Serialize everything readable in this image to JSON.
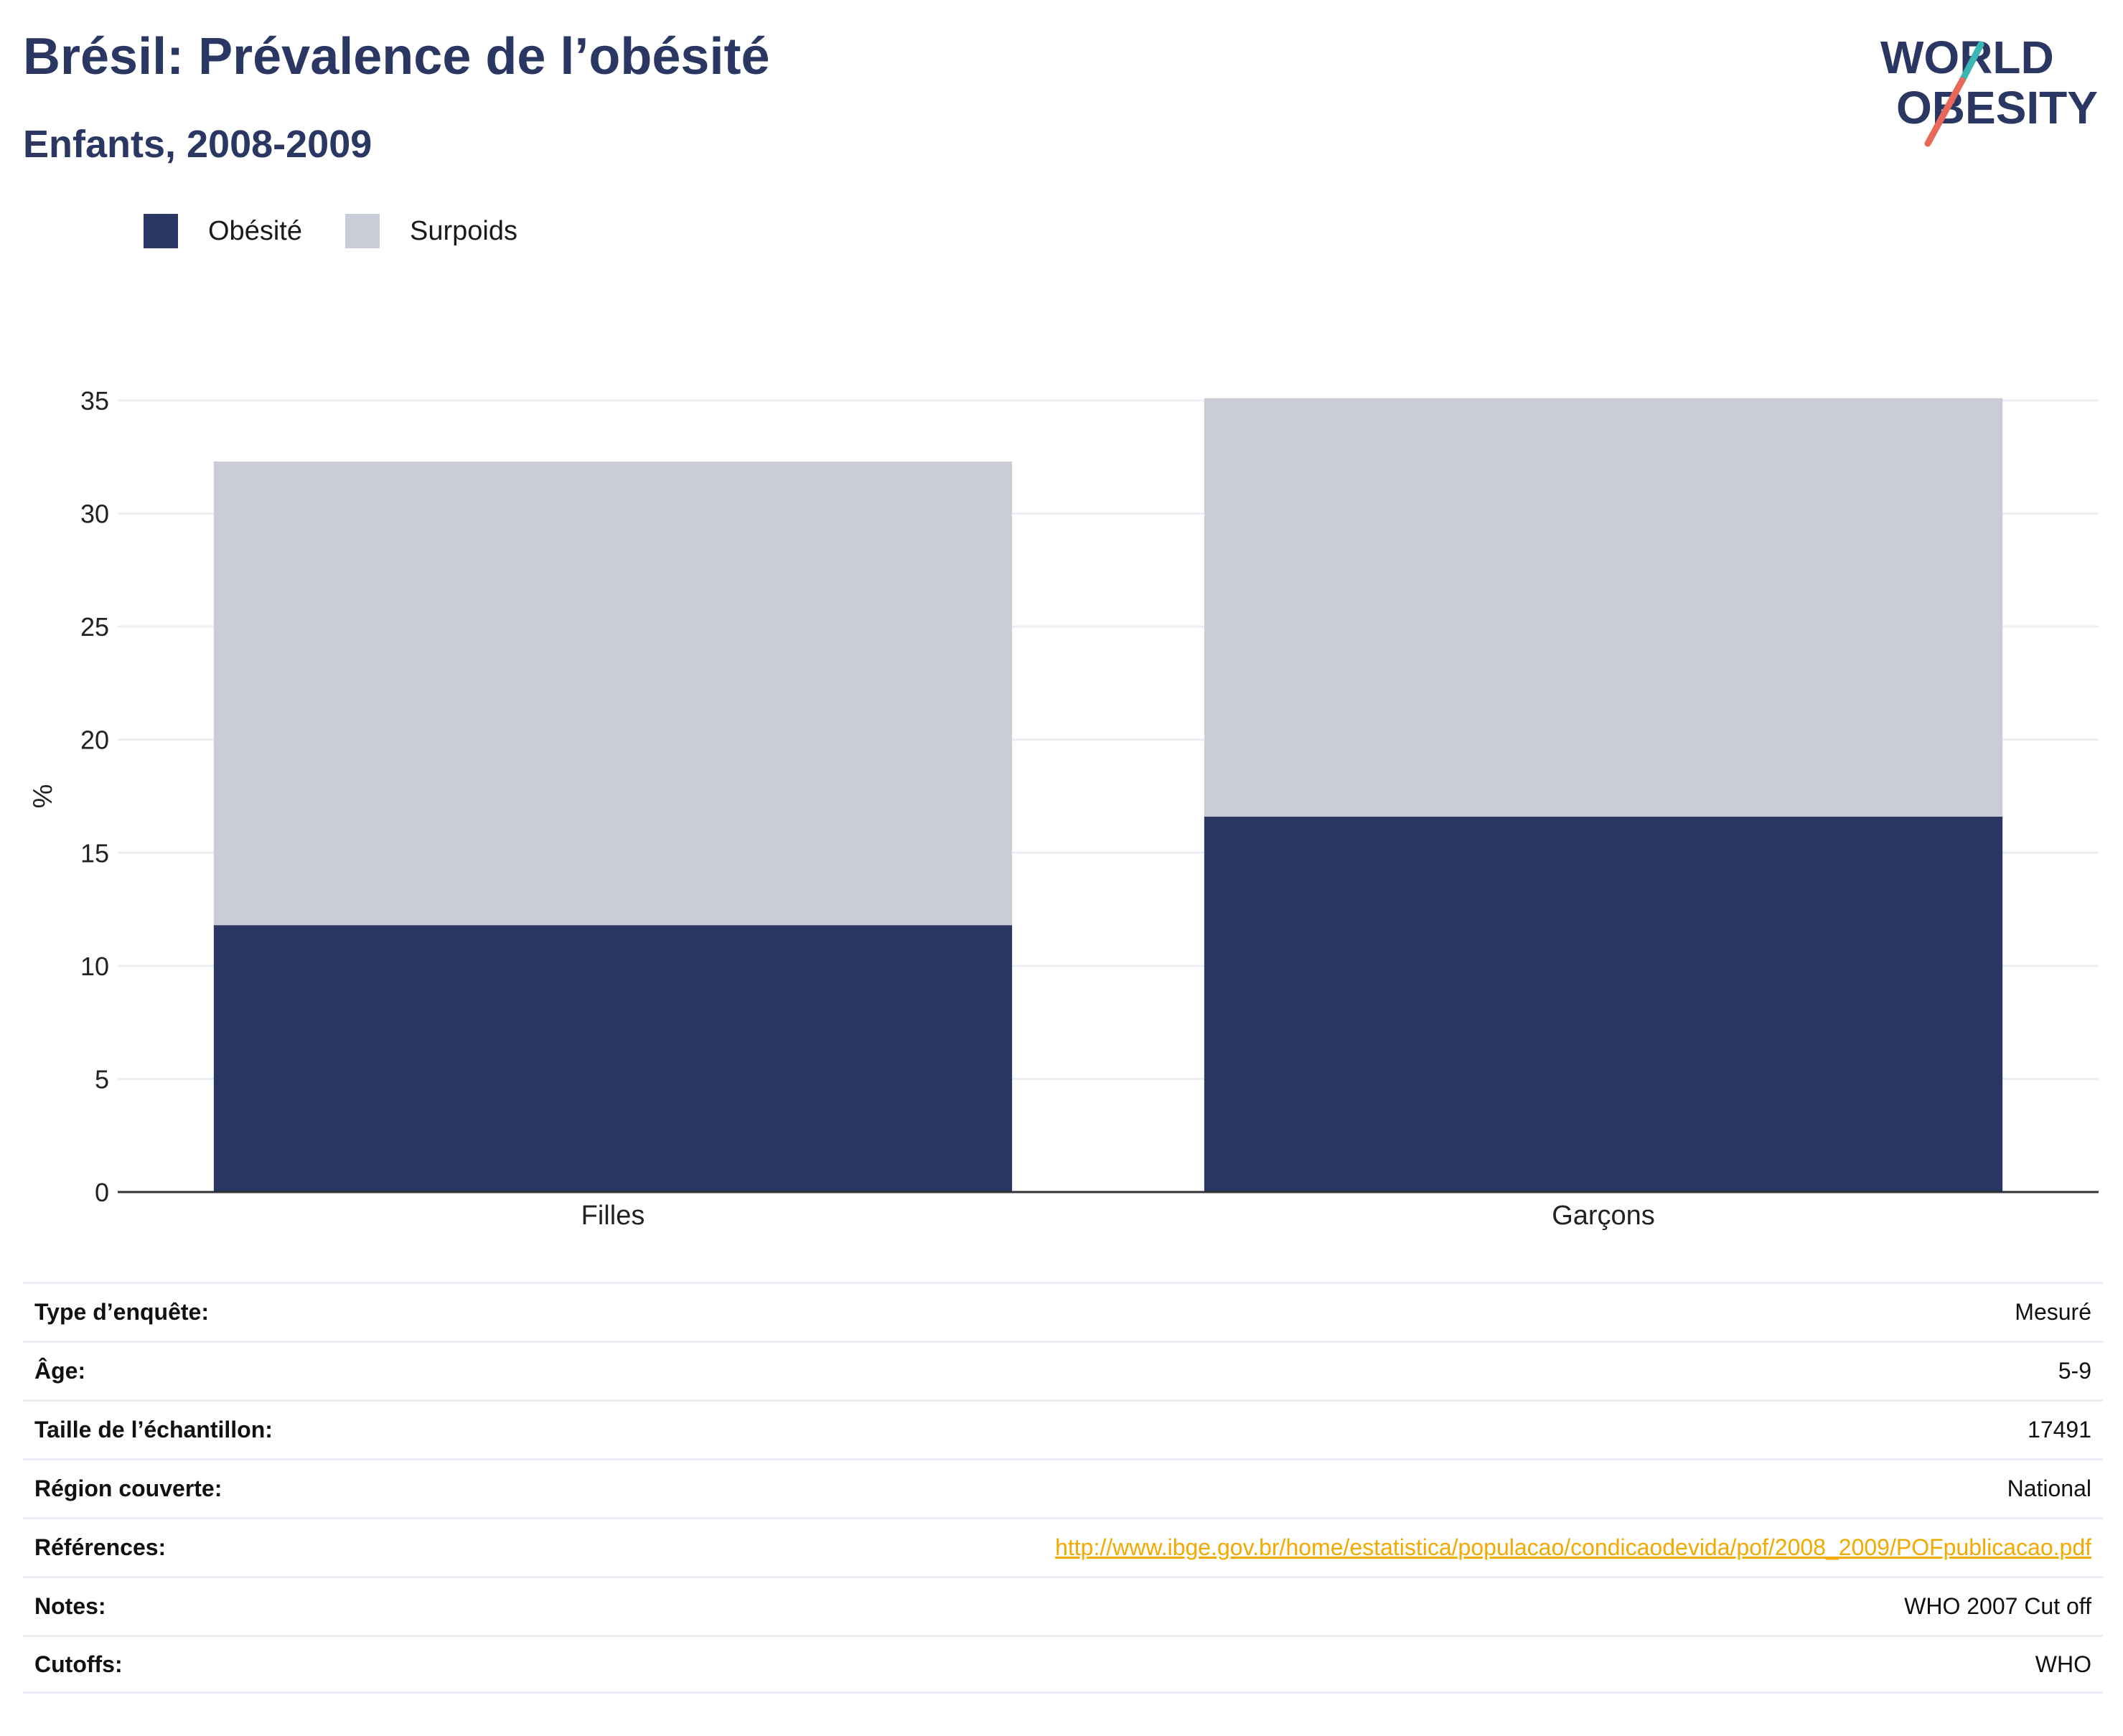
{
  "header": {
    "title": "Brésil: Prévalence de l’obésité",
    "subtitle": "Enfants, 2008-2009"
  },
  "logo": {
    "line1": "WORLD",
    "line2": "OBESITY",
    "colors": {
      "text": "#2a3762",
      "slash_top": "#3bb6b4",
      "slash_bottom": "#e8695a"
    }
  },
  "colors": {
    "obesity": "#2a3762",
    "overweight": "#caccd7",
    "grid": "#eceef4",
    "axis": "#333333",
    "link": "#f2a900"
  },
  "legend": [
    {
      "label": "Obésité",
      "color": "#2a3762"
    },
    {
      "label": "Surpoids",
      "color": "#caccd7"
    }
  ],
  "chart_data": {
    "type": "bar",
    "stacked": true,
    "categories": [
      "Filles",
      "Garçons"
    ],
    "series": [
      {
        "name": "Obésité",
        "values": [
          11.8,
          16.6
        ]
      },
      {
        "name": "Surpoids",
        "values": [
          20.5,
          18.5
        ]
      }
    ],
    "ylabel": "%",
    "ylim": [
      0,
      35
    ],
    "yticks": [
      0,
      5,
      10,
      15,
      20,
      25,
      30,
      35
    ],
    "grid": true,
    "legend_position": "top-left"
  },
  "info": [
    {
      "label": "Type d’enquête:",
      "value": "Mesuré"
    },
    {
      "label": "Âge:",
      "value": "5-9"
    },
    {
      "label": "Taille de l’échantillon:",
      "value": "17491"
    },
    {
      "label": "Région couverte:",
      "value": "National"
    },
    {
      "label": "Références:",
      "value": "http://www.ibge.gov.br/home/estatistica/populacao/condicaodevida/pof/2008_2009/POFpublicacao.pdf",
      "link": true
    },
    {
      "label": "Notes:",
      "value": "WHO 2007 Cut off"
    },
    {
      "label": "Cutoffs:",
      "value": "WHO"
    }
  ]
}
